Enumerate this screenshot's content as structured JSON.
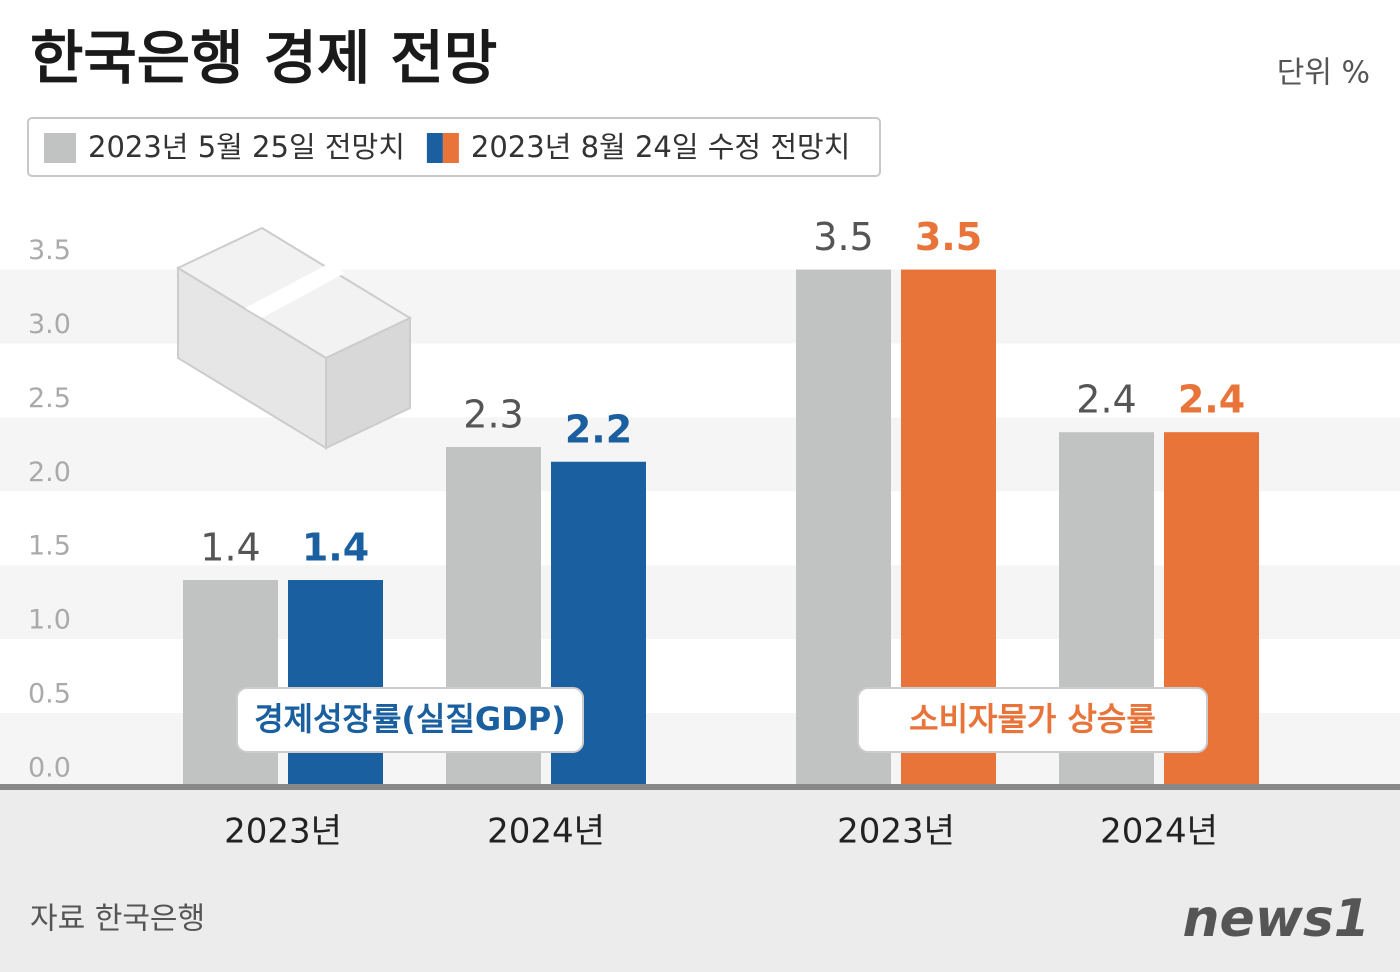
{
  "title": "한국은행 경제 전망",
  "unit": "단위 %",
  "source": "자료 한국은행",
  "logo": "news1",
  "chart_data": {
    "type": "bar",
    "ylim": [
      0,
      3.7
    ],
    "yticks": [
      {
        "value": 0,
        "label": "0.0"
      },
      {
        "value": 0.5,
        "label": "0.5"
      },
      {
        "value": 1,
        "label": "1.0"
      },
      {
        "value": 1.5,
        "label": "1.5"
      },
      {
        "value": 2,
        "label": "2.0"
      },
      {
        "value": 2.5,
        "label": "2.5"
      },
      {
        "value": 3,
        "label": "3.0"
      },
      {
        "value": 3.5,
        "label": "3.5"
      }
    ],
    "grid": true,
    "legend": [
      {
        "name": "2023년 5월 25일 전망치",
        "colors": [
          "#c1c2c2"
        ]
      },
      {
        "name": "2023년 8월 24일 수정 전망치",
        "colors": [
          "#1a5f9f",
          "#e8743a"
        ]
      }
    ],
    "panels": [
      {
        "label": "경제성장률(실질GDP)",
        "categories": [
          "2023년",
          "2024년"
        ],
        "series": [
          {
            "color": "#c1c2c2",
            "values": [
              1.4,
              2.3
            ]
          },
          {
            "color": "#1a5f9f",
            "values": [
              1.4,
              2.2
            ]
          }
        ]
      },
      {
        "label": "소비자물가 상승률",
        "categories": [
          "2023년",
          "2024년"
        ],
        "series": [
          {
            "color": "#c1c2c2",
            "values": [
              3.5,
              2.4
            ]
          },
          {
            "color": "#e8743a",
            "values": [
              3.5,
              2.4
            ]
          }
        ]
      }
    ]
  }
}
